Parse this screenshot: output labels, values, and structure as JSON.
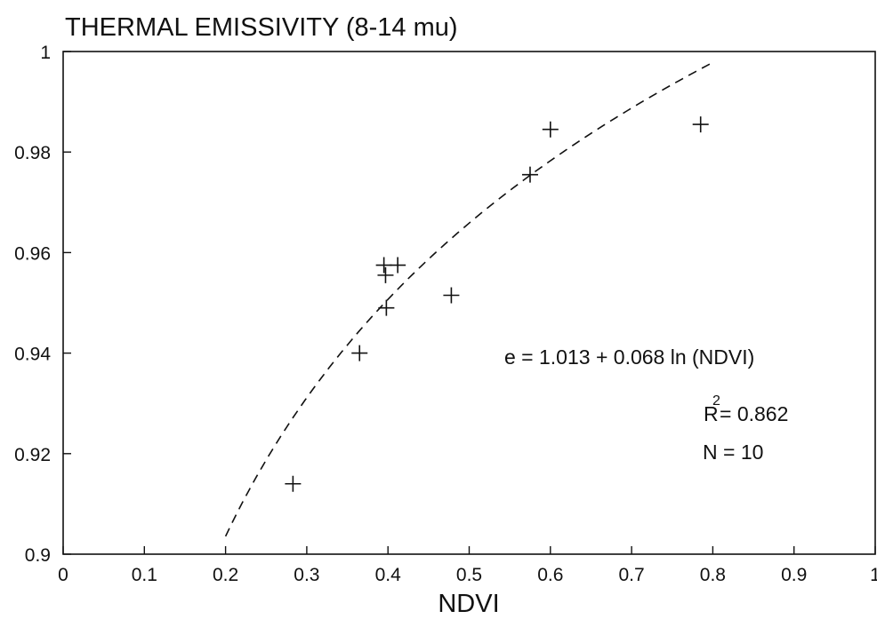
{
  "chart_data": {
    "type": "scatter",
    "title": "THERMAL EMISSIVITY (8-14 mu)",
    "xlabel": "NDVI",
    "ylabel": "",
    "xlim": [
      0,
      1
    ],
    "ylim": [
      0.9,
      1
    ],
    "x_ticks": [
      0,
      0.1,
      0.2,
      0.3,
      0.4,
      0.5,
      0.6,
      0.7,
      0.8,
      0.9,
      1
    ],
    "x_tick_labels": [
      "0",
      "0.1",
      "0.2",
      "0.3",
      "0.4",
      "0.5",
      "0.6",
      "0.7",
      "0.8",
      "0.9",
      "1"
    ],
    "y_ticks": [
      0.9,
      0.92,
      0.94,
      0.96,
      0.98,
      1
    ],
    "y_tick_labels": [
      "0.9",
      "0.92",
      "0.94",
      "0.96",
      "0.98",
      "1"
    ],
    "grid": false,
    "points": [
      {
        "x": 0.283,
        "y": 0.914
      },
      {
        "x": 0.365,
        "y": 0.94
      },
      {
        "x": 0.395,
        "y": 0.9575
      },
      {
        "x": 0.397,
        "y": 0.9555
      },
      {
        "x": 0.398,
        "y": 0.949
      },
      {
        "x": 0.412,
        "y": 0.9575
      },
      {
        "x": 0.478,
        "y": 0.9515
      },
      {
        "x": 0.575,
        "y": 0.9755
      },
      {
        "x": 0.6,
        "y": 0.9845
      },
      {
        "x": 0.785,
        "y": 0.9855
      }
    ],
    "fit": {
      "equation": "e = 1.013 + 0.068 ln (NDVI)",
      "intercept": 1.013,
      "slope": 0.068,
      "x_range": [
        0.2,
        0.8
      ],
      "line_style": "dashed"
    },
    "annotations": {
      "r2_base": "R",
      "r2_sup": "2",
      "r2_value": "= 0.862",
      "n": "N = 10"
    }
  }
}
